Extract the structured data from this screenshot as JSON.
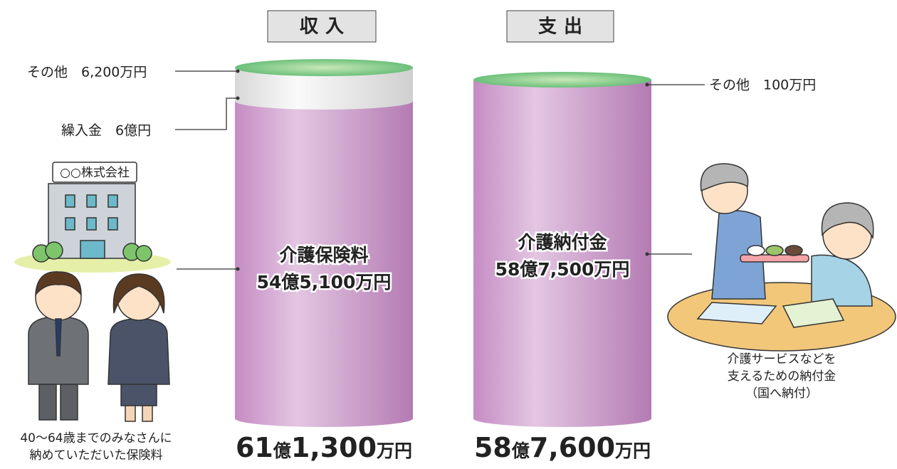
{
  "income": {
    "header": "収入",
    "other": "その他　6,200万円",
    "transfer": "繰入金　6億円",
    "company": "○○株式会社",
    "main_title": "介護保険料",
    "main_amount": "54億5,100万円",
    "caption": [
      "40〜64歳までのみなさんに",
      "納めていただいた保険料"
    ],
    "total": [
      "61",
      "億",
      "1,300",
      "万円"
    ]
  },
  "expense": {
    "header": "支出",
    "other": "その他　100万円",
    "main_title": "介護納付金",
    "main_amount": "58億7,500万円",
    "caption": [
      "介護サービスなどを",
      "支えるための納付金",
      "（国へ納付）"
    ],
    "total": [
      "58",
      "億",
      "7,600",
      "万円"
    ]
  }
}
